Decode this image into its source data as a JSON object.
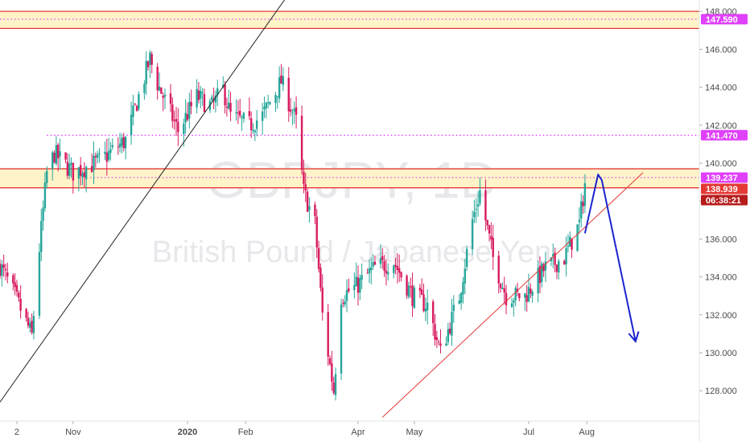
{
  "watermark": {
    "symbol": "GBPJPY, 1D",
    "description": "British Pound / Japanese Yen"
  },
  "colors": {
    "up": "#26a69a",
    "down": "#d81b60",
    "zone_fill": "#fff3c8",
    "zone_border": "#e53935",
    "level_dotted": "#e040fb",
    "trendline_black": "#222222",
    "trendline_red": "#e53935",
    "arrow": "#1a23d0",
    "tag_magenta": "#e040fb",
    "tag_red": "#e53935",
    "tag_dark": "#b71c1c"
  },
  "price_tags": [
    {
      "label": "147.590",
      "value": 147.59,
      "color_key": "tag_magenta"
    },
    {
      "label": "141.470",
      "value": 141.47,
      "color_key": "tag_magenta"
    },
    {
      "label": "139.237",
      "value": 139.237,
      "color_key": "tag_magenta"
    },
    {
      "label": "138.939",
      "value": 138.939,
      "color_key": "tag_red"
    },
    {
      "label": "06:38:21",
      "value": 138.4,
      "color_key": "tag_dark"
    }
  ],
  "chart_data": {
    "type": "candlestick",
    "symbol": "GBPJPY",
    "interval": "1D",
    "y_axis": {
      "side": "right",
      "range": [
        126.4,
        148.6
      ],
      "ticks": [
        148.0,
        146.0,
        144.0,
        142.0,
        140.0,
        138.0,
        136.0,
        134.0,
        132.0,
        130.0,
        128.0
      ],
      "tick_labels": [
        "148.000",
        "146.000",
        "144.000",
        "142.000",
        "140.000",
        "138.000",
        "136.000",
        "134.000",
        "132.000",
        "130.000",
        "128.000"
      ]
    },
    "x_axis": {
      "date_range": [
        "2019-09-23",
        "2020-09-30"
      ],
      "ticks": [
        {
          "label": "2",
          "date": "2019-10-02",
          "bold": false
        },
        {
          "label": "Nov",
          "date": "2019-11-01",
          "bold": false
        },
        {
          "label": "2020",
          "date": "2020-01-01",
          "bold": true
        },
        {
          "label": "Feb",
          "date": "2020-02-01",
          "bold": false
        },
        {
          "label": "Apr",
          "date": "2020-04-01",
          "bold": false
        },
        {
          "label": "May",
          "date": "2020-05-01",
          "bold": false
        },
        {
          "label": "Jul",
          "date": "2020-07-01",
          "bold": false
        },
        {
          "label": "Aug",
          "date": "2020-08-01",
          "bold": false
        }
      ]
    },
    "candle_window": [
      "2019-09-23",
      "2020-07-31"
    ],
    "price_path": [
      [
        "2019-09-23",
        134.6
      ],
      [
        "2019-10-01",
        133.0
      ],
      [
        "2019-10-10",
        130.9
      ],
      [
        "2019-10-14",
        135.5
      ],
      [
        "2019-10-18",
        139.5
      ],
      [
        "2019-10-22",
        140.5
      ],
      [
        "2019-11-01",
        139.5
      ],
      [
        "2019-11-15",
        140.1
      ],
      [
        "2019-11-29",
        141.2
      ],
      [
        "2019-12-05",
        143.2
      ],
      [
        "2019-12-12",
        145.5
      ],
      [
        "2019-12-16",
        144.2
      ],
      [
        "2019-12-20",
        143.3
      ],
      [
        "2019-12-27",
        141.7
      ],
      [
        "2020-01-06",
        143.5
      ],
      [
        "2020-01-14",
        143.0
      ],
      [
        "2020-01-20",
        143.9
      ],
      [
        "2020-01-24",
        142.5
      ],
      [
        "2020-02-03",
        142.0
      ],
      [
        "2020-02-10",
        142.5
      ],
      [
        "2020-02-20",
        144.3
      ],
      [
        "2020-02-28",
        142.2
      ],
      [
        "2020-03-03",
        138.5
      ],
      [
        "2020-03-09",
        136.8
      ],
      [
        "2020-03-13",
        132.0
      ],
      [
        "2020-03-19",
        128.0
      ],
      [
        "2020-03-23",
        133.0
      ],
      [
        "2020-03-31",
        133.5
      ],
      [
        "2020-04-10",
        134.5
      ],
      [
        "2020-04-20",
        134.8
      ],
      [
        "2020-04-30",
        133.0
      ],
      [
        "2020-05-08",
        132.5
      ],
      [
        "2020-05-15",
        130.0
      ],
      [
        "2020-05-25",
        133.0
      ],
      [
        "2020-06-01",
        137.0
      ],
      [
        "2020-06-05",
        138.5
      ],
      [
        "2020-06-12",
        135.0
      ],
      [
        "2020-06-19",
        133.0
      ],
      [
        "2020-06-29",
        133.0
      ],
      [
        "2020-07-10",
        134.5
      ],
      [
        "2020-07-20",
        135.0
      ],
      [
        "2020-07-28",
        136.8
      ],
      [
        "2020-07-31",
        138.9
      ]
    ],
    "zones": [
      {
        "from": 147.1,
        "to": 148.0
      },
      {
        "from": 138.7,
        "to": 139.7
      }
    ],
    "dotted_levels": [
      {
        "value": 147.59,
        "from": "2019-09-23"
      },
      {
        "value": 141.47,
        "from": "2019-10-18"
      },
      {
        "value": 139.237,
        "from": "2019-11-10"
      }
    ],
    "trendlines": [
      {
        "color_key": "trendline_black",
        "from": [
          "2019-09-23",
          127.4
        ],
        "to": [
          "2020-02-26",
          149.2
        ]
      },
      {
        "color_key": "trendline_red",
        "from": [
          "2020-04-14",
          126.6
        ],
        "to": [
          "2020-08-31",
          139.5
        ]
      }
    ],
    "projection_arrow": [
      [
        "2020-07-31",
        136.3
      ],
      [
        "2020-08-07",
        139.4
      ],
      [
        "2020-08-09",
        139.1
      ],
      [
        "2020-08-27",
        130.6
      ]
    ],
    "current_price": 138.939,
    "countdown": "06:38:21"
  }
}
